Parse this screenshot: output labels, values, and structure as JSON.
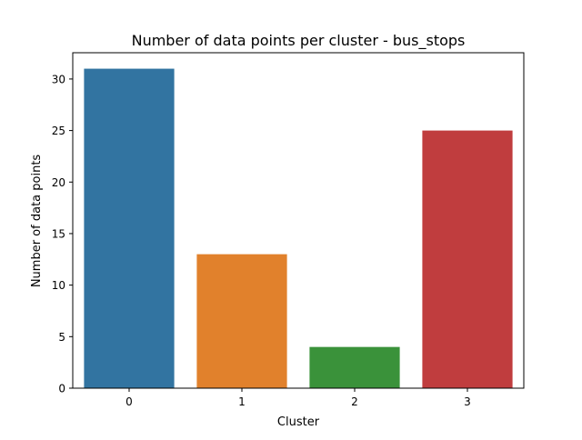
{
  "chart_data": {
    "type": "bar",
    "title": "Number of data points per cluster - bus_stops",
    "xlabel": "Cluster",
    "ylabel": "Number of data points",
    "categories": [
      "0",
      "1",
      "2",
      "3"
    ],
    "values": [
      31,
      13,
      4,
      25
    ],
    "colors": [
      "#3274a1",
      "#e1812c",
      "#3a923a",
      "#c03d3e"
    ],
    "ylim": [
      0,
      32.55
    ],
    "yticks": [
      0,
      5,
      10,
      15,
      20,
      25,
      30
    ],
    "grid": false
  }
}
